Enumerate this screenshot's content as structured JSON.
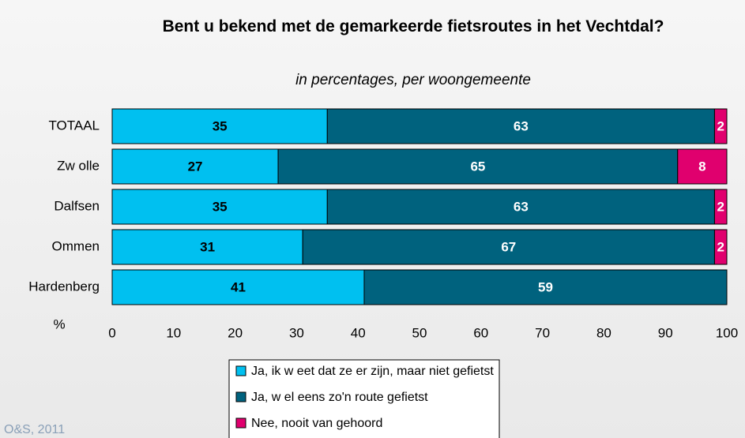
{
  "chart_data": {
    "type": "stacked-barh",
    "title": "Bent u bekend met de gemarkeerde fietsroutes in het Vechtdal?",
    "subtitle": "in percentages, per woongemeente",
    "xlabel": "%",
    "source": "O&S, 2011",
    "categories": [
      "TOTAAL",
      "Zw olle",
      "Dalfsen",
      "Ommen",
      "Hardenberg"
    ],
    "series": [
      {
        "name": "Ja, ik w eet dat ze er zijn, maar niet gefietst",
        "color": "#00c0f0",
        "label_color": "#000000",
        "values": [
          35,
          27,
          35,
          31,
          41
        ]
      },
      {
        "name": "Ja, w el eens zo'n route gefietst",
        "color": "#00627e",
        "label_color": "#ffffff",
        "values": [
          63,
          65,
          63,
          67,
          59
        ]
      },
      {
        "name": "Nee, nooit van gehoord",
        "color": "#e0006e",
        "label_color": "#ffffff",
        "values": [
          2,
          8,
          2,
          2,
          null
        ]
      }
    ],
    "xlim": [
      0,
      100
    ],
    "xticks": [
      0,
      10,
      20,
      30,
      40,
      50,
      60,
      70,
      80,
      90,
      100
    ],
    "grid": false
  }
}
